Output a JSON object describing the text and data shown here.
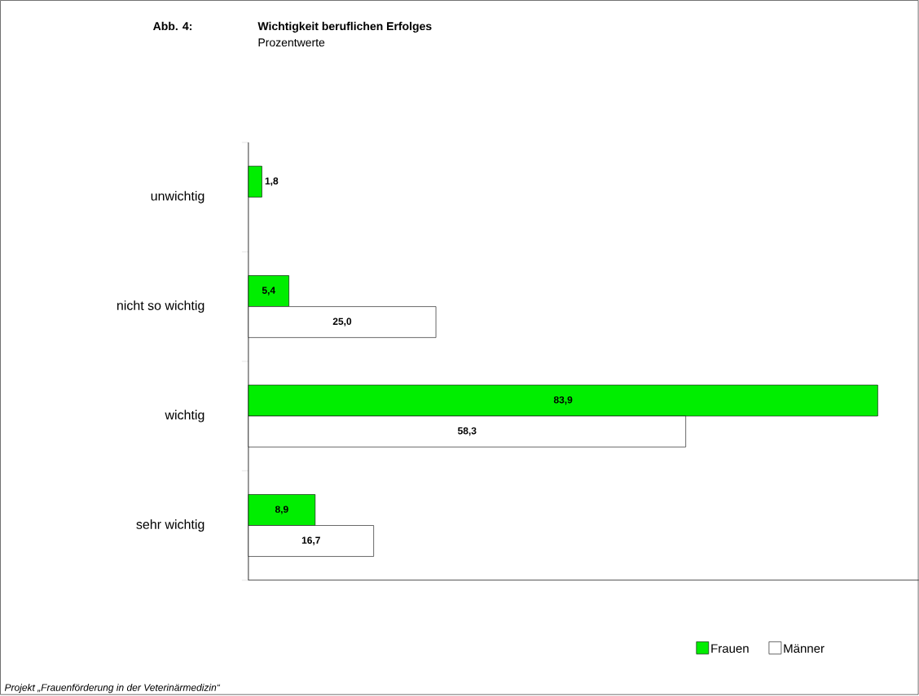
{
  "chart_data": {
    "type": "bar",
    "orientation": "horizontal",
    "title": "Wichtigkeit beruflichen Erfolges",
    "subtitle": "Prozentwerte",
    "annotations": [
      "Abb. 4:",
      "Projekt „Frauenförderung in der Veterinärmedizin“"
    ],
    "categories": [
      "unwichtig",
      "nicht so wichtig",
      "wichtig",
      "sehr wichtig"
    ],
    "series": [
      {
        "name": "Frauen",
        "color": "#00ee00",
        "values": [
          1.8,
          5.4,
          83.9,
          8.9
        ],
        "value_labels": [
          "1,8",
          "5,4",
          "83,9",
          "8,9"
        ]
      },
      {
        "name": "Männer",
        "color": "#ffffff",
        "values": [
          null,
          25.0,
          58.3,
          16.7
        ],
        "value_labels": [
          null,
          "25,0",
          "58,3",
          "16,7"
        ]
      }
    ],
    "legend": "bottom right"
  }
}
